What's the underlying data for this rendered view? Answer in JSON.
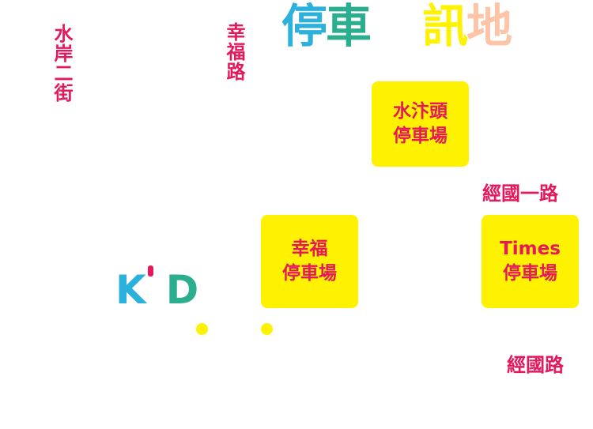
{
  "title": {
    "chars": [
      {
        "text": "停",
        "color": "#2cb0dc"
      },
      {
        "text": "車",
        "color": "#2bae8e"
      },
      {
        "text": "",
        "color": "#ffffff"
      },
      {
        "text": "訊",
        "color": "#fff200"
      },
      {
        "text": "地",
        "color": "#fdc4a7"
      }
    ]
  },
  "roads": {
    "shuian_2nd_st": "水岸二街",
    "xingfu_rd": "幸福路",
    "jingguo_1st_rd": "經國一路",
    "jingguo_rd": "經國路"
  },
  "parking_lots": [
    {
      "line1": "水汴頭",
      "line2": "停車場"
    },
    {
      "line1": "幸福",
      "line2": "停車場"
    },
    {
      "line1": "Times",
      "line2": "停車場"
    }
  ],
  "logo": {
    "k": "K",
    "d": "D",
    "colors": {
      "k": "#2cb0dc",
      "apostrophe": "#e5185c",
      "d": "#2bae8e"
    }
  },
  "colors": {
    "road_label": "#e5185c",
    "lot_fill": "#fff200",
    "marker_dot": "#fff200"
  }
}
